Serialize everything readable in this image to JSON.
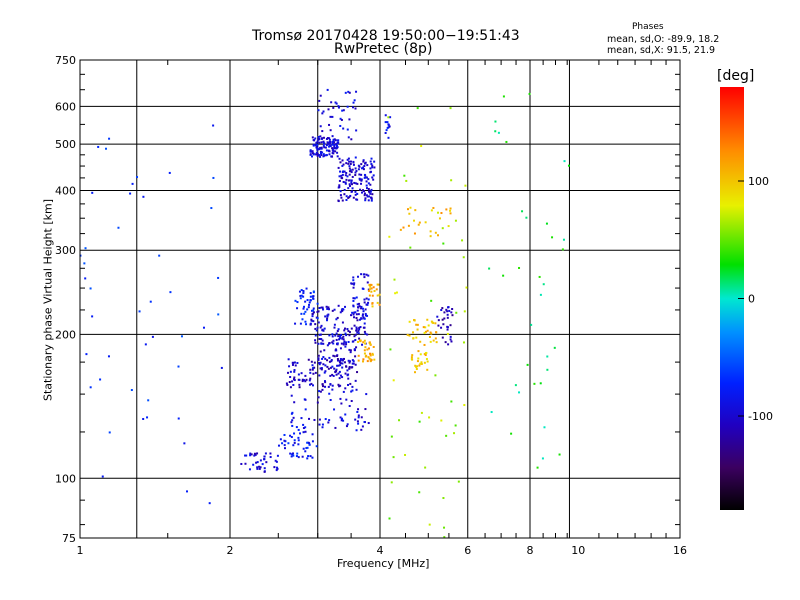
{
  "header": {
    "title_line1": "Tromsø 20170428 19:50:00−19:51:43",
    "title_line2": "RwPretec (8p)"
  },
  "phases_box": {
    "heading": "Phases",
    "line_o": "mean, sd,O: -89.9, 18.2",
    "line_x": "mean, sd,X:  91.5, 21.9"
  },
  "colorbar": {
    "unit_label": "[deg]",
    "ticks": [
      "100",
      "0",
      "-100"
    ],
    "range": [
      -180,
      180
    ]
  },
  "chart_data": {
    "type": "scatter",
    "xlabel": "Frequency [MHz]",
    "ylabel": "Stationary phase Virtual Height [km]",
    "x_scale": "log",
    "y_scale": "log",
    "xlim": [
      1,
      16
    ],
    "ylim": [
      75,
      750
    ],
    "x_tick_labels": [
      "1",
      "2",
      "4",
      "6",
      "8",
      "10",
      "16"
    ],
    "y_tick_labels": [
      "750",
      "600",
      "500",
      "400",
      "300",
      "200",
      "100",
      "75"
    ],
    "grid": true,
    "grid_x": [
      1.3,
      2,
      3,
      4,
      6,
      8,
      9.6
    ],
    "grid_y": [
      100,
      200,
      300,
      400,
      500,
      600
    ],
    "color_by": "phase (deg)",
    "clusters": [
      {
        "x": [
          2.9,
          3.3
        ],
        "y": [
          470,
          520
        ],
        "phase": -95,
        "n": 130
      },
      {
        "x": [
          3.3,
          3.9
        ],
        "y": [
          380,
          470
        ],
        "phase": -100,
        "n": 150
      },
      {
        "x": [
          3.0,
          3.6
        ],
        "y": [
          510,
          650
        ],
        "phase": -95,
        "n": 40
      },
      {
        "x": [
          4.1,
          4.2
        ],
        "y": [
          515,
          580
        ],
        "phase": -85,
        "n": 12
      },
      {
        "x": [
          2.9,
          3.8
        ],
        "y": [
          190,
          230
        ],
        "phase": -100,
        "n": 120
      },
      {
        "x": [
          2.7,
          3.0
        ],
        "y": [
          210,
          250
        ],
        "phase": -75,
        "n": 45
      },
      {
        "x": [
          3.5,
          3.8
        ],
        "y": [
          215,
          270
        ],
        "phase": -90,
        "n": 50
      },
      {
        "x": [
          3.0,
          3.6
        ],
        "y": [
          170,
          200
        ],
        "phase": -100,
        "n": 70
      },
      {
        "x": [
          2.6,
          3.6
        ],
        "y": [
          155,
          178
        ],
        "phase": -105,
        "n": 120
      },
      {
        "x": [
          3.6,
          3.9
        ],
        "y": [
          175,
          195
        ],
        "phase": 110,
        "n": 35
      },
      {
        "x": [
          3.8,
          4.0
        ],
        "y": [
          225,
          255
        ],
        "phase": 110,
        "n": 22
      },
      {
        "x": [
          4.5,
          5.2
        ],
        "y": [
          190,
          215
        ],
        "phase": 100,
        "n": 35
      },
      {
        "x": [
          4.6,
          5.0
        ],
        "y": [
          165,
          185
        ],
        "phase": 100,
        "n": 25
      },
      {
        "x": [
          5.2,
          5.6
        ],
        "y": [
          190,
          230
        ],
        "phase": -110,
        "n": 30
      },
      {
        "x": [
          4.4,
          5.6
        ],
        "y": [
          320,
          370
        ],
        "phase": 105,
        "n": 25
      },
      {
        "x": [
          2.1,
          2.5
        ],
        "y": [
          103,
          113
        ],
        "phase": -95,
        "n": 40
      },
      {
        "x": [
          2.5,
          3.0
        ],
        "y": [
          110,
          125
        ],
        "phase": -80,
        "n": 45
      },
      {
        "x": [
          3.0,
          3.8
        ],
        "y": [
          125,
          155
        ],
        "phase": -95,
        "n": 50
      },
      {
        "x": [
          2.6,
          3.0
        ],
        "y": [
          125,
          150
        ],
        "phase": -90,
        "n": 20
      },
      {
        "x": [
          1.0,
          2.0
        ],
        "y": [
          80,
          550
        ],
        "phase": -70,
        "n": 45
      },
      {
        "x": [
          4.0,
          6.0
        ],
        "y": [
          75,
          600
        ],
        "phase": 60,
        "n": 50
      },
      {
        "x": [
          6.5,
          9.6
        ],
        "y": [
          100,
          640
        ],
        "phase": 20,
        "n": 35
      }
    ]
  }
}
